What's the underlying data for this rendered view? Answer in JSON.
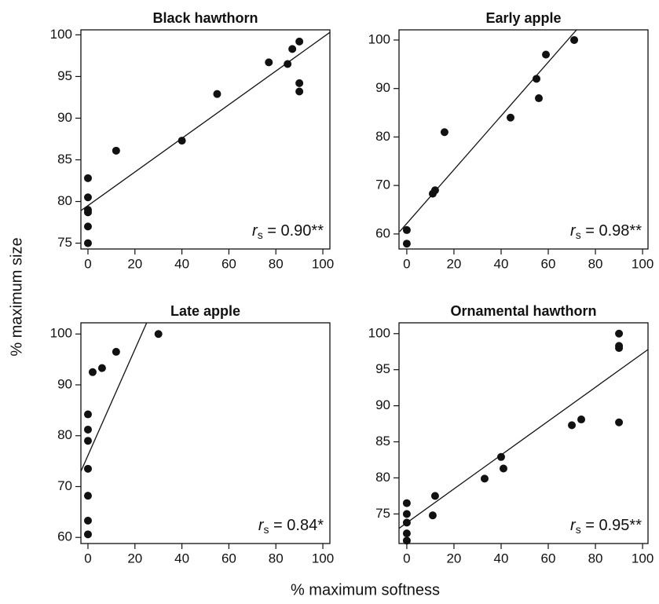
{
  "ylabel": "% maximum size",
  "xlabel": "% maximum softness",
  "chart_data": [
    {
      "type": "scatter",
      "title": "Black hawthorn",
      "color": "#111111",
      "x": [
        0,
        0,
        0,
        0,
        0,
        0,
        12,
        40,
        55,
        77,
        85,
        87,
        90,
        90,
        90
      ],
      "y": [
        75,
        77,
        78.7,
        79,
        80.5,
        82.8,
        86.1,
        87.3,
        92.9,
        96.7,
        96.5,
        98.3,
        99.2,
        94.2,
        93.2
      ],
      "fit_line": {
        "x": [
          -3,
          103
        ],
        "y": [
          78.9,
          100.3
        ]
      },
      "xlim": [
        -3,
        103
      ],
      "ylim": [
        74.3,
        100.6
      ],
      "xticks": [
        0,
        20,
        40,
        60,
        80,
        100
      ],
      "yticks": [
        75,
        80,
        85,
        90,
        95,
        100
      ],
      "annotation": {
        "prefix": "r",
        "subscript": "s",
        "text": " = 0.90**"
      }
    },
    {
      "type": "scatter",
      "title": "Early apple",
      "color": "#111111",
      "x": [
        0,
        0,
        11,
        12,
        16,
        44,
        55,
        56,
        59,
        71
      ],
      "y": [
        58,
        60.8,
        68.3,
        69,
        81,
        84,
        92,
        88,
        97,
        100
      ],
      "fit_line": {
        "x": [
          -3,
          72
        ],
        "y": [
          60.5,
          102.1
        ]
      },
      "xlim": [
        -3.3,
        102.3
      ],
      "ylim": [
        56.9,
        102.1
      ],
      "xticks": [
        0,
        20,
        40,
        60,
        80,
        100
      ],
      "yticks": [
        60,
        70,
        80,
        90,
        100
      ],
      "annotation": {
        "prefix": "r",
        "subscript": "s",
        "text": " = 0.98**"
      }
    },
    {
      "type": "scatter",
      "title": "Late apple",
      "color": "#111111",
      "x": [
        0,
        0,
        0,
        0,
        0,
        0,
        0,
        2,
        6,
        12,
        30
      ],
      "y": [
        60.6,
        63.3,
        68.2,
        73.5,
        79,
        81.2,
        84.2,
        92.5,
        93.3,
        96.5,
        100
      ],
      "fit_line": {
        "x": [
          -3,
          25
        ],
        "y": [
          73,
          102.2
        ]
      },
      "xlim": [
        -3,
        103
      ],
      "ylim": [
        58.8,
        102.2
      ],
      "xticks": [
        0,
        20,
        40,
        60,
        80,
        100
      ],
      "yticks": [
        60,
        70,
        80,
        90,
        100
      ],
      "annotation": {
        "prefix": "r",
        "subscript": "s",
        "text": " = 0.84*"
      }
    },
    {
      "type": "scatter",
      "title": "Ornamental hawthorn",
      "color": "#111111",
      "x": [
        0,
        0,
        0,
        0,
        0,
        11,
        12,
        33,
        40,
        41,
        70,
        74,
        90,
        90,
        90,
        90
      ],
      "y": [
        71.3,
        72.3,
        73.8,
        75,
        76.5,
        74.8,
        77.5,
        79.9,
        82.9,
        81.3,
        87.3,
        88.1,
        87.7,
        98,
        98.3,
        100
      ],
      "fit_line": {
        "x": [
          -3.3,
          102.3
        ],
        "y": [
          73,
          97.8
        ]
      },
      "xlim": [
        -3.3,
        102.3
      ],
      "ylim": [
        70.9,
        101.5
      ],
      "xticks": [
        0,
        20,
        40,
        60,
        80,
        100
      ],
      "yticks": [
        75,
        80,
        85,
        90,
        95,
        100
      ],
      "annotation": {
        "prefix": "r",
        "subscript": "s",
        "text": " = 0.95**"
      }
    }
  ]
}
